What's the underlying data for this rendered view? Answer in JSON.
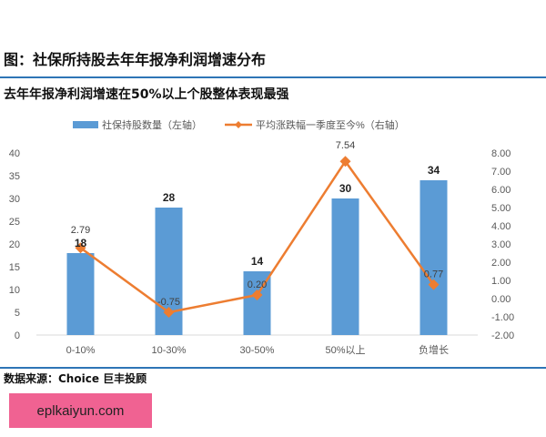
{
  "title": "图：社保所持股去年年报净利润增速分布",
  "subtitle": "去年年报净利润增速在50%以上个股整体表现最强",
  "source": "数据来源：Choice 巨丰投顾",
  "watermark": "eplkaiyun.com",
  "chart_data": {
    "type": "bar+line",
    "categories": [
      "0-10%",
      "10-30%",
      "30-50%",
      "50%以上",
      "负增长"
    ],
    "series": [
      {
        "name": "社保持股数量（左轴）",
        "type": "bar",
        "axis": "left",
        "color": "#5b9bd5",
        "values": [
          18,
          28,
          14,
          30,
          34
        ],
        "labels": [
          "18",
          "28",
          "14",
          "30",
          "34"
        ]
      },
      {
        "name": "平均涨跌幅一季度至今%（右轴）",
        "type": "line",
        "axis": "right",
        "color": "#ed7d31",
        "values": [
          2.79,
          -0.75,
          0.2,
          7.54,
          0.77
        ],
        "labels": [
          "2.79",
          "-0.75",
          "0.20",
          "7.54",
          "0.77"
        ]
      }
    ],
    "left_axis": {
      "ylim": [
        0,
        40
      ],
      "ticks": [
        "0",
        "5",
        "10",
        "15",
        "20",
        "25",
        "30",
        "35",
        "40"
      ]
    },
    "right_axis": {
      "ylim": [
        -2,
        8
      ],
      "ticks": [
        "-2.00",
        "-1.00",
        "0.00",
        "1.00",
        "2.00",
        "3.00",
        "4.00",
        "5.00",
        "6.00",
        "7.00",
        "8.00"
      ]
    },
    "legend": "top",
    "grid": false
  }
}
